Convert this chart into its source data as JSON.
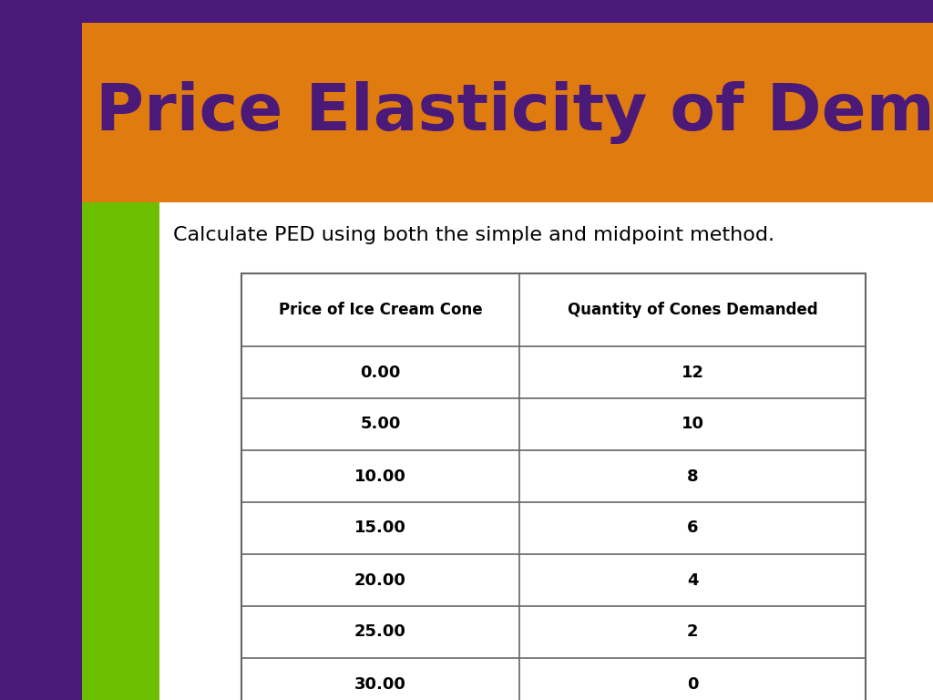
{
  "title": "Price Elasticity of Demand",
  "subtitle": "Calculate PED using both the simple and midpoint method.",
  "bg_color": "#4b1a78",
  "orange_color": "#e07b10",
  "green_color": "#6bbf00",
  "title_color": "#4b1a78",
  "subtitle_color": "#000000",
  "table_header": [
    "Price of Ice Cream Cone",
    "Quantity of Cones Demanded"
  ],
  "table_data": [
    [
      "0.00",
      "12"
    ],
    [
      "5.00",
      "10"
    ],
    [
      "10.00",
      "8"
    ],
    [
      "15.00",
      "6"
    ],
    [
      "20.00",
      "4"
    ],
    [
      "25.00",
      "2"
    ],
    [
      "30.00",
      "0"
    ]
  ],
  "arrow_color": "#1a5faa",
  "white_color": "#ffffff"
}
